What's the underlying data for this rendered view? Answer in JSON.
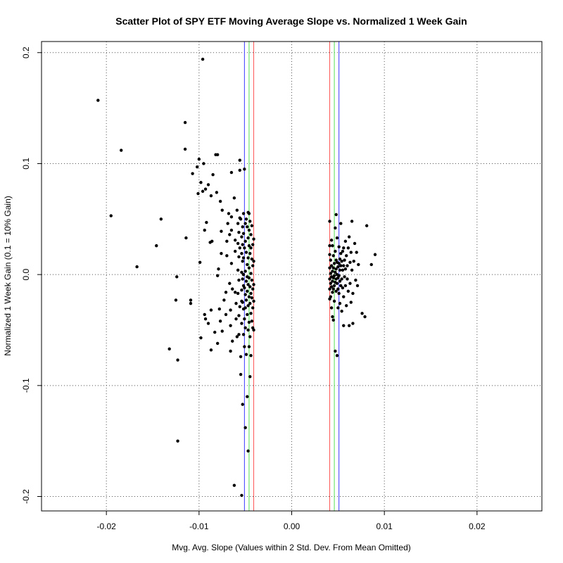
{
  "chart_data": {
    "type": "scatter",
    "title": "Scatter Plot of SPY ETF Moving Average Slope vs. Normalized 1 Week Gain",
    "xlabel": "Mvg. Avg. Slope (Values within 2 Std. Dev. From Mean Omitted)",
    "ylabel": "Normalized 1 Week Gain (0.1 = 10% Gain)",
    "xlim": [
      -0.027,
      0.027
    ],
    "ylim": [
      -0.213,
      0.21
    ],
    "x_ticks": [
      -0.02,
      -0.01,
      0.0,
      0.01,
      0.02
    ],
    "x_tick_labels": [
      "-0.02",
      "-0.01",
      "0.00",
      "0.01",
      "0.02"
    ],
    "y_ticks": [
      -0.2,
      -0.1,
      0.0,
      0.1,
      0.2
    ],
    "y_tick_labels": [
      "-0.2",
      "-0.1",
      "0.0",
      "0.1",
      "0.2"
    ],
    "grid": true,
    "point_color": "#000000",
    "vertical_lines": [
      {
        "x": -0.0051,
        "color": "#3b3bff"
      },
      {
        "x": -0.0046,
        "color": "#55dd55"
      },
      {
        "x": -0.0041,
        "color": "#ff5555"
      },
      {
        "x": 0.0041,
        "color": "#ff5555"
      },
      {
        "x": 0.0046,
        "color": "#55dd55"
      },
      {
        "x": 0.0051,
        "color": "#3b3bff"
      }
    ],
    "points": [
      [
        -0.0209,
        0.157
      ],
      [
        -0.0096,
        0.194
      ],
      [
        -0.0184,
        0.112
      ],
      [
        -0.0195,
        0.053
      ],
      [
        -0.0167,
        0.007
      ],
      [
        -0.0146,
        0.026
      ],
      [
        -0.0141,
        0.05
      ],
      [
        -0.0132,
        -0.067
      ],
      [
        -0.0123,
        -0.077
      ],
      [
        -0.0123,
        -0.15
      ],
      [
        -0.0125,
        -0.023
      ],
      [
        -0.0124,
        -0.002
      ],
      [
        -0.0115,
        0.137
      ],
      [
        -0.0115,
        0.113
      ],
      [
        -0.0114,
        0.033
      ],
      [
        -0.0109,
        -0.023
      ],
      [
        -0.0109,
        -0.026
      ],
      [
        -0.0107,
        0.091
      ],
      [
        -0.0102,
        0.097
      ],
      [
        -0.01,
        0.104
      ],
      [
        -0.0098,
        0.083
      ],
      [
        -0.0095,
        0.1
      ],
      [
        -0.0096,
        0.075
      ],
      [
        -0.0093,
        0.077
      ],
      [
        -0.0092,
        0.047
      ],
      [
        -0.0094,
        0.04
      ],
      [
        -0.0101,
        0.073
      ],
      [
        -0.0099,
        0.011
      ],
      [
        -0.0098,
        -0.057
      ],
      [
        -0.0094,
        -0.036
      ],
      [
        -0.0093,
        -0.04
      ],
      [
        -0.009,
        -0.044
      ],
      [
        -0.009,
        0.081
      ],
      [
        -0.0087,
        0.071
      ],
      [
        -0.0085,
        0.09
      ],
      [
        -0.0082,
        0.108
      ],
      [
        -0.008,
        0.108
      ],
      [
        -0.0081,
        0.074
      ],
      [
        -0.0088,
        0.029
      ],
      [
        -0.0086,
        0.03
      ],
      [
        -0.0087,
        -0.032
      ],
      [
        -0.0087,
        -0.068
      ],
      [
        -0.0083,
        -0.052
      ],
      [
        -0.008,
        -0.062
      ],
      [
        -0.0077,
        0.066
      ],
      [
        -0.0076,
        0.039
      ],
      [
        -0.0076,
        0.019
      ],
      [
        -0.0079,
        0.005
      ],
      [
        -0.008,
        -0.001
      ],
      [
        -0.0078,
        -0.031
      ],
      [
        -0.0077,
        -0.042
      ],
      [
        -0.0075,
        -0.051
      ],
      [
        -0.0075,
        0.058
      ],
      [
        -0.0073,
        -0.023
      ],
      [
        -0.0071,
        -0.016
      ],
      [
        -0.0071,
        -0.036
      ],
      [
        -0.007,
        0.03
      ],
      [
        -0.007,
        0.017
      ],
      [
        -0.0069,
        0.046
      ],
      [
        -0.0068,
        0.055
      ],
      [
        -0.0067,
        0.036
      ],
      [
        -0.0067,
        -0.008
      ],
      [
        -0.0066,
        -0.032
      ],
      [
        -0.0066,
        -0.046
      ],
      [
        -0.0066,
        -0.069
      ],
      [
        -0.0065,
        0.092
      ],
      [
        -0.0065,
        0.052
      ],
      [
        -0.0065,
        0.04
      ],
      [
        -0.0065,
        0.01
      ],
      [
        -0.0064,
        -0.013
      ],
      [
        -0.0064,
        -0.06
      ],
      [
        -0.0062,
        -0.19
      ],
      [
        -0.0062,
        0.069
      ],
      [
        -0.0061,
        0.031
      ],
      [
        -0.0061,
        0.021
      ],
      [
        -0.0061,
        -0.016
      ],
      [
        -0.006,
        -0.026
      ],
      [
        -0.006,
        -0.04
      ],
      [
        -0.0059,
        -0.056
      ],
      [
        -0.0059,
        0.058
      ],
      [
        -0.0058,
        0.046
      ],
      [
        -0.0058,
        0.028
      ],
      [
        -0.0058,
        0.004
      ],
      [
        -0.0058,
        -0.017
      ],
      [
        -0.0057,
        0.038
      ],
      [
        -0.0057,
        0.016
      ],
      [
        -0.0057,
        -0.005
      ],
      [
        -0.0057,
        -0.037
      ],
      [
        -0.0057,
        -0.054
      ],
      [
        -0.0056,
        0.103
      ],
      [
        -0.0056,
        0.094
      ],
      [
        -0.0056,
        0.051
      ],
      [
        -0.0056,
        0.024
      ],
      [
        -0.0056,
        -0.029
      ],
      [
        -0.0055,
        -0.074
      ],
      [
        -0.0055,
        -0.09
      ],
      [
        -0.0055,
        0.05
      ],
      [
        -0.0054,
        0.034
      ],
      [
        -0.0054,
        0.019
      ],
      [
        -0.0054,
        0.002
      ],
      [
        -0.0054,
        -0.014
      ],
      [
        -0.0054,
        -0.024
      ],
      [
        -0.0054,
        -0.044
      ],
      [
        -0.0054,
        -0.199
      ],
      [
        -0.0053,
        -0.117
      ],
      [
        -0.0053,
        0.043
      ],
      [
        -0.0053,
        0.027
      ],
      [
        -0.0053,
        0.012
      ],
      [
        -0.0053,
        -0.004
      ],
      [
        -0.0053,
        -0.025
      ],
      [
        -0.0052,
        0.055
      ],
      [
        -0.0052,
        0.037
      ],
      [
        -0.0052,
        0.015
      ],
      [
        -0.0052,
        0.0
      ],
      [
        -0.0052,
        -0.01
      ],
      [
        -0.0052,
        -0.031
      ],
      [
        -0.0052,
        -0.054
      ],
      [
        -0.0051,
        0.095
      ],
      [
        -0.0051,
        0.024
      ],
      [
        -0.0051,
        -0.012
      ],
      [
        -0.0051,
        -0.04
      ],
      [
        -0.0051,
        -0.065
      ],
      [
        -0.005,
        -0.138
      ],
      [
        -0.005,
        0.046
      ],
      [
        -0.005,
        0.03
      ],
      [
        -0.005,
        0.003
      ],
      [
        -0.005,
        -0.018
      ],
      [
        -0.005,
        -0.03
      ],
      [
        -0.005,
        -0.048
      ],
      [
        -0.0049,
        0.05
      ],
      [
        -0.0049,
        0.02
      ],
      [
        -0.0049,
        -0.006
      ],
      [
        -0.0049,
        -0.023
      ],
      [
        -0.0049,
        -0.072
      ],
      [
        -0.0048,
        0.043
      ],
      [
        -0.0048,
        0.009
      ],
      [
        -0.0048,
        -0.002
      ],
      [
        -0.0048,
        -0.015
      ],
      [
        -0.0048,
        -0.036
      ],
      [
        -0.0048,
        -0.11
      ],
      [
        -0.0047,
        -0.159
      ],
      [
        -0.0047,
        0.056
      ],
      [
        -0.0047,
        0.033
      ],
      [
        -0.0047,
        0.015
      ],
      [
        -0.0047,
        -0.009
      ],
      [
        -0.0047,
        -0.028
      ],
      [
        -0.0047,
        -0.05
      ],
      [
        -0.0046,
        0.055
      ],
      [
        -0.0046,
        0.04
      ],
      [
        -0.0046,
        0.026
      ],
      [
        -0.0046,
        0.006
      ],
      [
        -0.0046,
        -0.003
      ],
      [
        -0.0046,
        -0.02
      ],
      [
        -0.0046,
        -0.043
      ],
      [
        -0.0046,
        -0.065
      ],
      [
        -0.0045,
        -0.092
      ],
      [
        -0.0045,
        0.048
      ],
      [
        -0.0045,
        0.019
      ],
      [
        -0.0045,
        -0.011
      ],
      [
        -0.0045,
        -0.026
      ],
      [
        -0.0045,
        -0.056
      ],
      [
        -0.0044,
        0.036
      ],
      [
        -0.0044,
        0.024
      ],
      [
        -0.0044,
        0.001
      ],
      [
        -0.0044,
        -0.017
      ],
      [
        -0.0044,
        -0.035
      ],
      [
        -0.0044,
        -0.073
      ],
      [
        -0.0043,
        0.044
      ],
      [
        -0.0043,
        0.014
      ],
      [
        -0.0043,
        -0.005
      ],
      [
        -0.0043,
        -0.021
      ],
      [
        -0.0043,
        -0.042
      ],
      [
        -0.0042,
        0.027
      ],
      [
        -0.0042,
        0.008
      ],
      [
        -0.0042,
        -0.013
      ],
      [
        -0.0042,
        -0.03
      ],
      [
        -0.0042,
        -0.048
      ],
      [
        -0.0041,
        0.032
      ],
      [
        -0.0041,
        0.012
      ],
      [
        -0.0041,
        -0.009
      ],
      [
        -0.0041,
        -0.024
      ],
      [
        -0.0041,
        -0.05
      ],
      [
        0.0041,
        0.048
      ],
      [
        0.0041,
        0.026
      ],
      [
        0.0041,
        0.018
      ],
      [
        0.0041,
        0.006
      ],
      [
        0.0041,
        -0.004
      ],
      [
        0.0041,
        -0.013
      ],
      [
        0.0041,
        -0.022
      ],
      [
        0.0042,
        0.013
      ],
      [
        0.0042,
        0.001
      ],
      [
        0.0042,
        -0.008
      ],
      [
        0.0042,
        -0.02
      ],
      [
        0.0043,
        0.031
      ],
      [
        0.0043,
        0.008
      ],
      [
        0.0043,
        -0.002
      ],
      [
        0.0043,
        -0.011
      ],
      [
        0.0043,
        -0.03
      ],
      [
        0.0044,
        0.026
      ],
      [
        0.0044,
        0.003
      ],
      [
        0.0044,
        -0.006
      ],
      [
        0.0044,
        -0.016
      ],
      [
        0.0044,
        -0.038
      ],
      [
        0.0045,
        0.017
      ],
      [
        0.0045,
        0.006
      ],
      [
        0.0045,
        -0.003
      ],
      [
        0.0045,
        -0.013
      ],
      [
        0.0045,
        -0.041
      ],
      [
        0.0046,
        0.01
      ],
      [
        0.0046,
        -0.001
      ],
      [
        0.0046,
        -0.01
      ],
      [
        0.0046,
        -0.024
      ],
      [
        0.0047,
        0.042
      ],
      [
        0.0047,
        0.021
      ],
      [
        0.0047,
        0.002
      ],
      [
        0.0047,
        -0.007
      ],
      [
        0.0047,
        -0.069
      ],
      [
        0.0048,
        0.054
      ],
      [
        0.0048,
        0.013
      ],
      [
        0.0048,
        0.005
      ],
      [
        0.0048,
        -0.004
      ],
      [
        0.0048,
        -0.015
      ],
      [
        0.0049,
        0.033
      ],
      [
        0.0049,
        0.011
      ],
      [
        0.0049,
        0.0
      ],
      [
        0.0049,
        -0.008
      ],
      [
        0.0049,
        -0.073
      ],
      [
        0.005,
        0.007
      ],
      [
        0.005,
        -0.003
      ],
      [
        0.005,
        -0.013
      ],
      [
        0.005,
        -0.03
      ],
      [
        0.0051,
        0.025
      ],
      [
        0.0051,
        0.01
      ],
      [
        0.0051,
        -0.001
      ],
      [
        0.0051,
        -0.017
      ],
      [
        0.0052,
        0.014
      ],
      [
        0.0052,
        0.004
      ],
      [
        0.0052,
        -0.006
      ],
      [
        0.0052,
        -0.026
      ],
      [
        0.0053,
        0.046
      ],
      [
        0.0053,
        0.019
      ],
      [
        0.0053,
        0.008
      ],
      [
        0.0053,
        -0.01
      ],
      [
        0.0054,
        0.012
      ],
      [
        0.0054,
        -0.004
      ],
      [
        0.0054,
        -0.033
      ],
      [
        0.0055,
        0.021
      ],
      [
        0.0055,
        0.004
      ],
      [
        0.0055,
        -0.012
      ],
      [
        0.0056,
        0.024
      ],
      [
        0.0056,
        0.008
      ],
      [
        0.0056,
        -0.02
      ],
      [
        0.0056,
        -0.046
      ],
      [
        0.0057,
        0.013
      ],
      [
        0.0057,
        -0.002
      ],
      [
        0.0058,
        0.03
      ],
      [
        0.0058,
        0.005
      ],
      [
        0.0058,
        -0.01
      ],
      [
        0.0059,
        0.017
      ],
      [
        0.0059,
        -0.028
      ],
      [
        0.006,
        0.008
      ],
      [
        0.006,
        -0.004
      ],
      [
        0.0061,
        0.024
      ],
      [
        0.0061,
        -0.015
      ],
      [
        0.0062,
        -0.046
      ],
      [
        0.0062,
        0.034
      ],
      [
        0.0063,
        0.011
      ],
      [
        0.0063,
        -0.008
      ],
      [
        0.0064,
        0.02
      ],
      [
        0.0064,
        -0.025
      ],
      [
        0.0065,
        0.048
      ],
      [
        0.0065,
        0.004
      ],
      [
        0.0066,
        -0.044
      ],
      [
        0.0066,
        -0.017
      ],
      [
        0.0067,
        0.012
      ],
      [
        0.0068,
        0.028
      ],
      [
        0.0069,
        -0.005
      ],
      [
        0.007,
        0.02
      ],
      [
        0.0071,
        -0.01
      ],
      [
        0.0072,
        0.009
      ],
      [
        0.0076,
        -0.035
      ],
      [
        0.0079,
        -0.038
      ],
      [
        0.0081,
        0.044
      ],
      [
        0.0086,
        0.009
      ],
      [
        0.009,
        0.018
      ]
    ]
  }
}
